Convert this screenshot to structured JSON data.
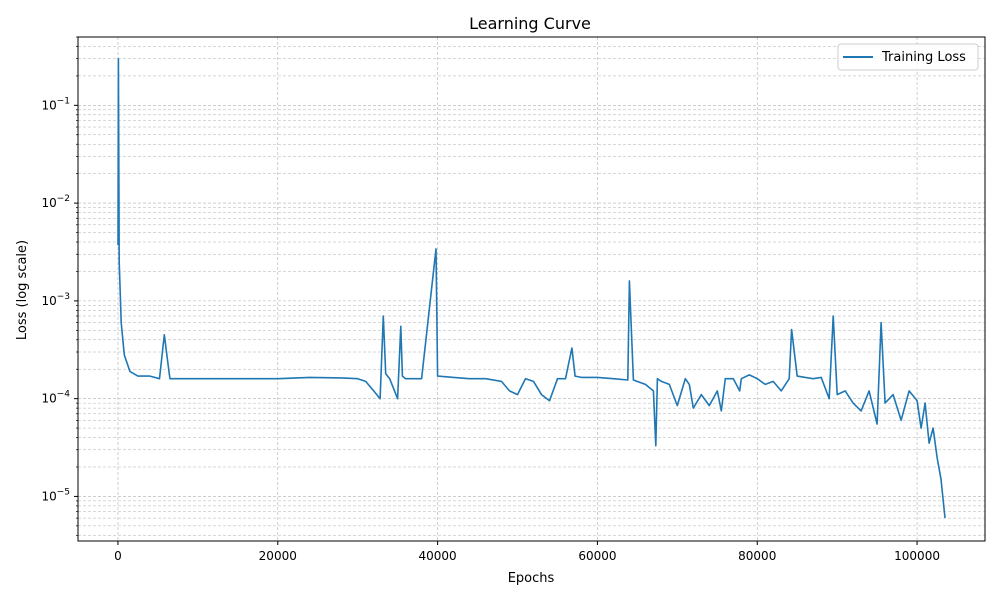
{
  "chart_data": {
    "type": "line",
    "title": "Learning Curve",
    "xlabel": "Epochs",
    "ylabel": "Loss (log scale)",
    "yscale": "log",
    "xlim": [
      -5000,
      108500
    ],
    "ylim": [
      3.5e-06,
      0.5
    ],
    "grid": "major and minor, dashed gray",
    "legend_position": "top-right",
    "line_color": "#1f77b4",
    "x_ticks": [
      0,
      20000,
      40000,
      60000,
      80000,
      100000
    ],
    "x_tick_labels": [
      "0",
      "20000",
      "40000",
      "60000",
      "80000",
      "100000"
    ],
    "y_ticks": [
      1e-05,
      0.0001,
      0.001,
      0.01,
      0.1
    ],
    "y_tick_labels": [
      {
        "base": "10",
        "exp": "−5"
      },
      {
        "base": "10",
        "exp": "−4"
      },
      {
        "base": "10",
        "exp": "−3"
      },
      {
        "base": "10",
        "exp": "−2"
      },
      {
        "base": "10",
        "exp": "−1"
      }
    ],
    "series": [
      {
        "name": "Training Loss",
        "x": [
          0,
          50,
          150,
          400,
          800,
          1500,
          2500,
          4000,
          5200,
          5800,
          6500,
          8000,
          9500,
          11000,
          13000,
          15000,
          17000,
          20000,
          24000,
          28000,
          30000,
          31000,
          32000,
          32800,
          33200,
          33500,
          34000,
          35000,
          35400,
          35600,
          36000,
          38000,
          39800,
          40000,
          42000,
          44000,
          46000,
          48000,
          49000,
          50000,
          51000,
          52000,
          53000,
          54000,
          55000,
          56000,
          56800,
          57200,
          58000,
          60000,
          62000,
          63800,
          64000,
          64500,
          66000,
          67000,
          67300,
          67500,
          68000,
          69000,
          70000,
          71000,
          71500,
          72000,
          73000,
          74000,
          75000,
          75500,
          76000,
          77000,
          77800,
          78000,
          79000,
          80000,
          81000,
          82000,
          83000,
          84000,
          84300,
          85000,
          86000,
          87000,
          88000,
          89000,
          89500,
          90000,
          91000,
          92000,
          93000,
          94000,
          95000,
          95500,
          96000,
          97000,
          98000,
          99000,
          100000,
          100500,
          101000,
          101500,
          102000,
          102500,
          103000,
          103500
        ],
        "y": [
          0.0037,
          0.3,
          0.0025,
          0.0006,
          0.00028,
          0.00019,
          0.00017,
          0.00017,
          0.00016,
          0.00045,
          0.00016,
          0.00016,
          0.00016,
          0.00016,
          0.00016,
          0.00016,
          0.00016,
          0.00016,
          0.000165,
          0.000163,
          0.00016,
          0.00015,
          0.00012,
          0.0001,
          0.0007,
          0.00018,
          0.00016,
          0.0001,
          0.00055,
          0.00017,
          0.00016,
          0.00016,
          0.0034,
          0.00017,
          0.000165,
          0.00016,
          0.00016,
          0.00015,
          0.00012,
          0.00011,
          0.00016,
          0.00015,
          0.00011,
          9.5e-05,
          0.00016,
          0.00016,
          0.00033,
          0.00017,
          0.000165,
          0.000165,
          0.00016,
          0.000155,
          0.0016,
          0.000155,
          0.00014,
          0.00012,
          3.3e-05,
          0.00016,
          0.00015,
          0.00014,
          8.5e-05,
          0.00016,
          0.00014,
          8e-05,
          0.00011,
          8.5e-05,
          0.00012,
          7.5e-05,
          0.00016,
          0.00016,
          0.00012,
          0.00016,
          0.000175,
          0.00016,
          0.00014,
          0.00015,
          0.00012,
          0.00016,
          0.00051,
          0.00017,
          0.000165,
          0.00016,
          0.000165,
          0.0001,
          0.0007,
          0.00011,
          0.00012,
          9e-05,
          7.5e-05,
          0.00012,
          5.5e-05,
          0.0006,
          9e-05,
          0.00011,
          6e-05,
          0.00012,
          9.5e-05,
          5e-05,
          9e-05,
          3.5e-05,
          5e-05,
          2.5e-05,
          1.5e-05,
          6e-06
        ]
      }
    ]
  }
}
